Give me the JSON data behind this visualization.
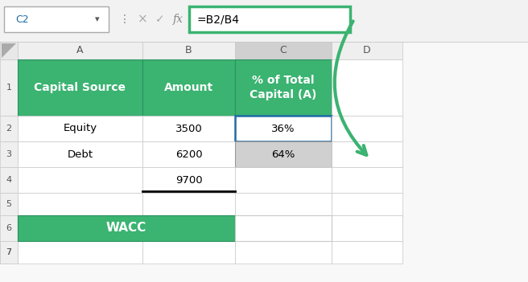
{
  "green": "#3BB371",
  "green_dark": "#2E8B57",
  "light_gray": "#D0D0D0",
  "white": "#FFFFFF",
  "black": "#000000",
  "grid_line": "#C8C8C8",
  "toolbar_bg": "#F2F2F2",
  "spreadsheet_bg": "#FFFFFF",
  "formula_bar_text": "=B2/B4",
  "cell_ref": "C2",
  "col_labels": [
    "A",
    "B",
    "C",
    "D"
  ],
  "row_labels": [
    "1",
    "2",
    "3",
    "4",
    "5",
    "6",
    "7"
  ],
  "header_row": [
    "Capital Source",
    "Amount",
    "% of Total\nCapital (A)"
  ],
  "data_rows": [
    [
      "Equity",
      "3500",
      "36%"
    ],
    [
      "Debt",
      "6200",
      "64%"
    ],
    [
      "",
      "9700",
      ""
    ],
    [
      "",
      "",
      ""
    ],
    [
      "WACC",
      "",
      ""
    ]
  ],
  "arrow_color": "#3BB371",
  "fig_w": 6.56,
  "fig_h": 3.51,
  "dpi": 100
}
